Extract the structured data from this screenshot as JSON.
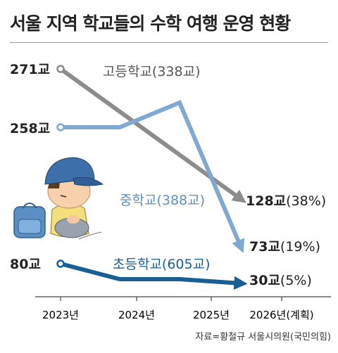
{
  "title": "서울 지역 학교들의 수학 여행 운영 현황",
  "source": "자료=황철규 서울시의원(국민의힘)",
  "chart_data": {
    "type": "line",
    "title": "서울 지역 학교들의 수학 여행 운영 현황",
    "categories": [
      "2023년",
      "2024년",
      "2025년",
      "2026년(계획)"
    ],
    "grid": false,
    "series": [
      {
        "name": "고등학교(338교)",
        "color": "#8c8c8c",
        "values": [
          271,
          null,
          null,
          128
        ],
        "start_label": "271교",
        "end_label_value": "128교",
        "end_label_pct": "(38%)"
      },
      {
        "name": "중학교(388교)",
        "color": "#7fa9d1",
        "values": [
          258,
          258,
          272,
          73
        ],
        "start_label": "258교",
        "end_label_value": "73교",
        "end_label_pct": "(19%)"
      },
      {
        "name": "초등학교(605교)",
        "color": "#1a5f93",
        "values": [
          80,
          60,
          60,
          30
        ],
        "start_label": "80교",
        "end_label_value": "30교",
        "end_label_pct": "(5%)"
      }
    ]
  },
  "colors": {
    "title_rule": "#9a9a9a",
    "axis": "#444444"
  }
}
